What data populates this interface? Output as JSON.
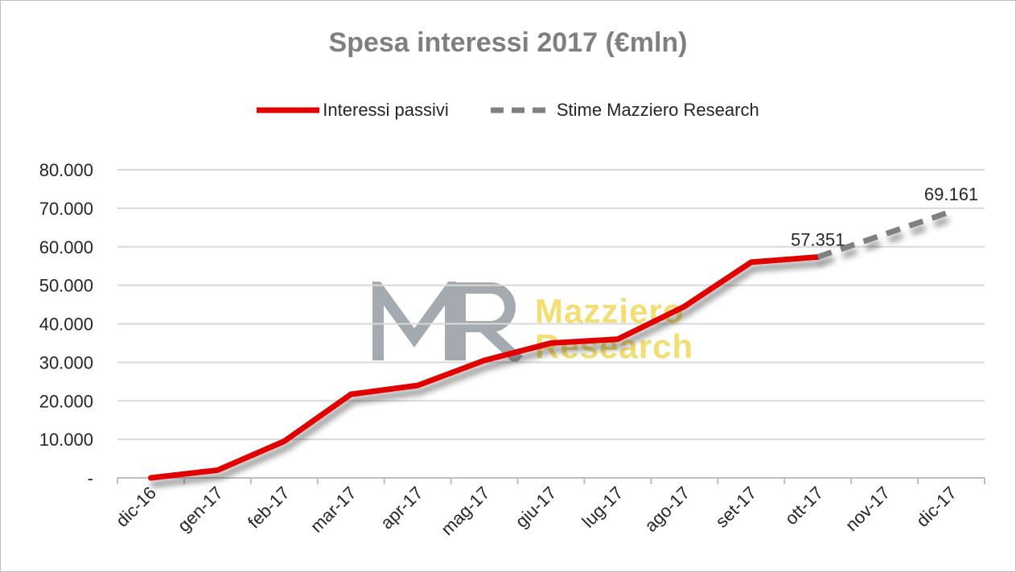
{
  "chart_data": {
    "type": "line",
    "title": "Spesa interessi 2017 (€mln)",
    "categories": [
      "dic-16",
      "gen-17",
      "feb-17",
      "mar-17",
      "apr-17",
      "mag-17",
      "giu-17",
      "lug-17",
      "ago-17",
      "set-17",
      "ott-17",
      "nov-17",
      "dic-17"
    ],
    "series": [
      {
        "name": "Interessi passivi",
        "color": "#e00000",
        "style": "solid",
        "values": [
          0,
          2000,
          9500,
          21700,
          24000,
          30500,
          35000,
          36000,
          44500,
          56000,
          57351,
          null,
          null
        ]
      },
      {
        "name": "Stime Mazziero Research",
        "color": "#808080",
        "style": "dashed",
        "values": [
          null,
          null,
          null,
          null,
          null,
          null,
          null,
          null,
          null,
          null,
          57351,
          63256,
          69161
        ]
      }
    ],
    "data_labels": [
      {
        "category": "ott-17",
        "value": 57351,
        "text": "57.351"
      },
      {
        "category": "dic-17",
        "value": 69161,
        "text": "69.161"
      }
    ],
    "y_ticks": [
      0,
      10000,
      20000,
      30000,
      40000,
      50000,
      60000,
      70000,
      80000
    ],
    "y_tick_labels": [
      "-",
      "10.000",
      "20.000",
      "30.000",
      "40.000",
      "50.000",
      "60.000",
      "70.000",
      "80.000"
    ],
    "ylim": [
      0,
      80000
    ],
    "grid": true,
    "legend_position": "top-center",
    "xlabel": "",
    "ylabel": ""
  },
  "watermark": {
    "logo_letters": "MR",
    "line1": "Mazziero",
    "line2": "Research",
    "accent_color": "#e8c400",
    "logo_color": "#5a6670"
  }
}
